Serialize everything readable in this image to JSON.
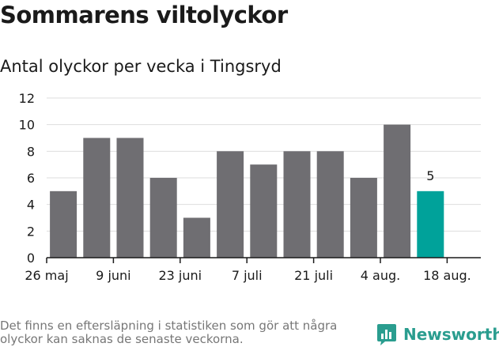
{
  "title": "Sommarens viltolyckor",
  "subtitle": "Antal olyckor per vecka i Tingsryd",
  "footnote": "Det finns en eftersläpning i statistiken som gör att några olyckor kan saknas de senaste veckorna.",
  "brand": "Newsworthy",
  "colors": {
    "bar": "#6f6e72",
    "highlight": "#00a29a",
    "grid": "#dddddd",
    "axis": "#1a1a1a",
    "brand": "#2a9d8f"
  },
  "chart_data": {
    "type": "bar",
    "title": "Sommarens viltolyckor",
    "subtitle": "Antal olyckor per vecka i Tingsryd",
    "values": [
      5,
      9,
      9,
      6,
      3,
      8,
      7,
      8,
      8,
      6,
      10,
      5
    ],
    "highlight_index": 11,
    "data_labels": [
      {
        "index": 11,
        "text": "5"
      }
    ],
    "x_tick_labels": [
      "26 maj",
      "9 juni",
      "23 juni",
      "7 juli",
      "21 juli",
      "4 aug.",
      "18 aug."
    ],
    "x_tick_label_at_boundary": [
      0,
      2,
      4,
      6,
      8,
      10,
      12
    ],
    "y_ticks": [
      0,
      2,
      4,
      6,
      8,
      10,
      12
    ],
    "ylim": [
      0,
      12
    ],
    "grid": true,
    "legend": "none"
  }
}
